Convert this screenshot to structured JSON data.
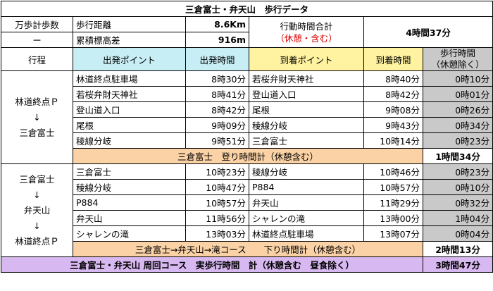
{
  "title": "三倉富士・弁天山　歩行データ",
  "summary": {
    "steps_label": "万歩計歩数",
    "steps_value": "ー",
    "distance_label": "歩行距離",
    "distance_value": "8.6Km",
    "elev_label": "累積標高差",
    "elev_value": "916m",
    "time_label": "行動時間合計",
    "time_note": "（休憩・含む）",
    "time_value": "4時間37分"
  },
  "headers": {
    "route": "行程",
    "start_point": "出発ポイント",
    "start_time": "出発時間",
    "end_point": "到着ポイント",
    "end_time": "到着時間",
    "walk_time_1": "歩行時間",
    "walk_time_2": "（休憩除く）"
  },
  "section1": {
    "label_from": "林道終点Ｐ",
    "arrow": "↓",
    "label_to": "三倉富士",
    "rows": [
      {
        "start": "林道終点駐車場",
        "start_time": "8時30分",
        "end": "若桜弁財天神社",
        "end_time": "8時40分",
        "walk": "0時10分"
      },
      {
        "start": "若桜弁財天神社",
        "start_time": "8時41分",
        "end": "登山道入口",
        "end_time": "8時42分",
        "walk": "0時01分"
      },
      {
        "start": "登山道入口",
        "start_time": "8時42分",
        "end": "尾根",
        "end_time": "9時08分",
        "walk": "0時26分"
      },
      {
        "start": "尾根",
        "start_time": "9時09分",
        "end": "稜線分岐",
        "end_time": "9時43分",
        "walk": "0時34分"
      },
      {
        "start": "稜線分岐",
        "start_time": "9時51分",
        "end": "三倉富士",
        "end_time": "10時14分",
        "walk": "0時23分"
      }
    ],
    "subtotal_label": "三倉富士　登り時間計（休憩含む）",
    "subtotal_value": "1時間34分"
  },
  "section2": {
    "label_1": "三倉富士",
    "arrow": "↓",
    "label_2": "弁天山",
    "label_3": "林道終点Ｐ",
    "rows": [
      {
        "start": "三倉富士",
        "start_time": "10時23分",
        "end": "稜線分岐",
        "end_time": "10時46分",
        "walk": "0時23分"
      },
      {
        "start": "稜線分岐",
        "start_time": "10時47分",
        "end": "P884",
        "end_time": "10時57分",
        "walk": "0時10分"
      },
      {
        "start": "P884",
        "start_time": "10時57分",
        "end": "弁天山",
        "end_time": "11時29分",
        "walk": "0時32分"
      },
      {
        "start": "弁天山",
        "start_time": "11時56分",
        "end": "シャレンの滝",
        "end_time": "13時00分",
        "walk": "1時04分"
      },
      {
        "start": "シャレンの滝",
        "start_time": "13時03分",
        "end": "林道終点駐車場",
        "end_time": "13時07分",
        "walk": "0時04分"
      }
    ],
    "subtotal_label": "三倉富士→弁天山→滝コース　　下り時間計（休憩含む）",
    "subtotal_value": "2時間13分"
  },
  "total": {
    "label": "三倉富士・弁天山 周回コース　実歩行時間　計（休憩含む　昼食除く）",
    "value": "3時間47分"
  }
}
